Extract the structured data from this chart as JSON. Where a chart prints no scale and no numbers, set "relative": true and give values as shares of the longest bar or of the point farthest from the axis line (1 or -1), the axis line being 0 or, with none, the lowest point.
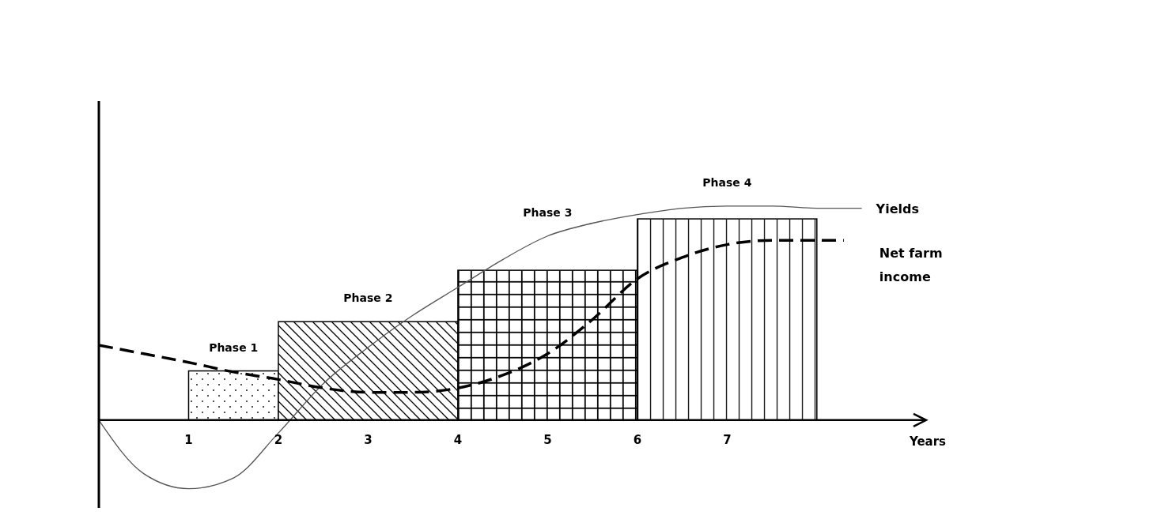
{
  "chart_data": {
    "type": "histogram",
    "relative": true,
    "xlabel": "Years",
    "xlim": [
      0,
      9.2
    ],
    "xticks": [
      1,
      2,
      3,
      4,
      5,
      6,
      7
    ],
    "grid": false,
    "series": [
      {
        "color": "#000000",
        "bins": [
          1,
          2,
          4,
          6,
          8
        ],
        "values": [
          0.23,
          0.46,
          0.7,
          0.94
        ]
      },
      {
        "type": "line",
        "name": "Yields",
        "color": "#555555",
        "line_style": "solid",
        "x": [
          0,
          0.5,
          1,
          1.5,
          2,
          2.5,
          3,
          3.5,
          4,
          4.5,
          5,
          5.5,
          6,
          6.5,
          7,
          7.5,
          8,
          8.5
        ],
        "values": [
          0,
          -0.25,
          -0.32,
          -0.27,
          -0.06,
          0.17,
          0.34,
          0.49,
          0.62,
          0.75,
          0.86,
          0.92,
          0.96,
          0.99,
          1.0,
          1.0,
          0.99,
          0.99
        ]
      },
      {
        "type": "line",
        "name": "Net farm income",
        "color": "#000000",
        "line_style": "dashed",
        "x": [
          0,
          0.5,
          1,
          1.5,
          2,
          2.5,
          3,
          3.5,
          4,
          4.5,
          5,
          5.5,
          6,
          6.5,
          7,
          7.5,
          8,
          8.3
        ],
        "values": [
          0.35,
          0.31,
          0.27,
          0.225,
          0.19,
          0.15,
          0.13,
          0.13,
          0.15,
          0.21,
          0.31,
          0.47,
          0.66,
          0.76,
          0.82,
          0.84,
          0.84,
          0.84
        ]
      }
    ],
    "annotations": [
      "Phase 1",
      "Phase 2",
      "Phase 3",
      "Phase 4"
    ]
  }
}
